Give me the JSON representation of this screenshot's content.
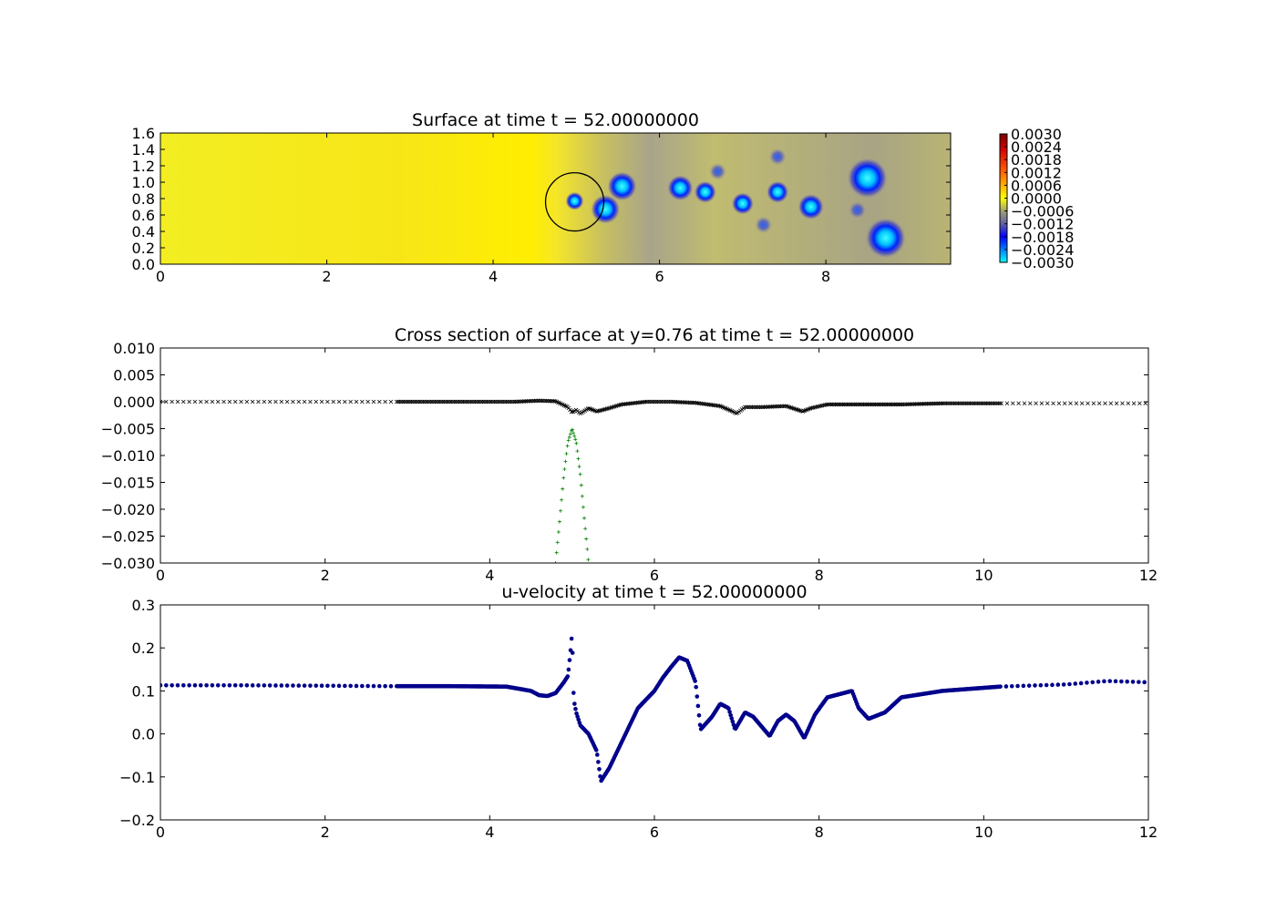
{
  "chart_data": [
    {
      "type": "heatmap",
      "title": "Surface at time t =    52.00000000",
      "xlim": [
        0,
        9.5
      ],
      "ylim": [
        0,
        1.6
      ],
      "xticks": [
        0,
        2,
        4,
        6,
        8
      ],
      "yticks": [
        "0.0",
        "0.2",
        "0.4",
        "0.6",
        "0.8",
        "1.0",
        "1.2",
        "1.4",
        "1.6"
      ],
      "colorbar": {
        "range": [
          -0.003,
          0.003
        ],
        "ticks": [
          "0.0030",
          "0.0024",
          "0.0018",
          "0.0012",
          "0.0006",
          "0.0000",
          "−0.0006",
          "−0.0012",
          "−0.0018",
          "−0.0024",
          "−0.0030"
        ],
        "colormap": "jet-like with yellow center"
      },
      "background_value": 0.0,
      "features": [
        {
          "x": 4.98,
          "y": 0.77,
          "r": 0.05,
          "value": -0.003
        },
        {
          "x": 5.55,
          "y": 0.95,
          "r": 0.08,
          "value": -0.003
        },
        {
          "x": 5.35,
          "y": 0.67,
          "r": 0.08,
          "value": -0.003
        },
        {
          "x": 6.25,
          "y": 0.93,
          "r": 0.07,
          "value": -0.0025
        },
        {
          "x": 6.55,
          "y": 0.88,
          "r": 0.06,
          "value": -0.0022
        },
        {
          "x": 6.7,
          "y": 1.13,
          "r": 0.04,
          "value": -0.0012
        },
        {
          "x": 7.0,
          "y": 0.74,
          "r": 0.06,
          "value": -0.0022
        },
        {
          "x": 7.25,
          "y": 0.48,
          "r": 0.04,
          "value": -0.0012
        },
        {
          "x": 7.42,
          "y": 0.88,
          "r": 0.06,
          "value": -0.002
        },
        {
          "x": 7.42,
          "y": 1.31,
          "r": 0.04,
          "value": -0.0012
        },
        {
          "x": 7.82,
          "y": 0.7,
          "r": 0.07,
          "value": -0.0022
        },
        {
          "x": 8.38,
          "y": 0.66,
          "r": 0.04,
          "value": -0.0015
        },
        {
          "x": 8.5,
          "y": 1.05,
          "r": 0.11,
          "value": -0.003
        },
        {
          "x": 8.72,
          "y": 0.32,
          "r": 0.11,
          "value": -0.003
        }
      ],
      "circle": {
        "x": 4.98,
        "y": 0.76,
        "radius_x": 0.35
      }
    },
    {
      "type": "scatter",
      "title": "Cross section of surface at y=0.76 at time t =    52.00000000",
      "xlim": [
        0,
        12
      ],
      "ylim": [
        -0.03,
        0.01
      ],
      "xticks": [
        0,
        2,
        4,
        6,
        8,
        10,
        12
      ],
      "yticks": [
        "0.010",
        "0.005",
        "0.000",
        "−0.005",
        "−0.010",
        "−0.015",
        "−0.020",
        "−0.025",
        "−0.030"
      ],
      "series": [
        {
          "marker": "x",
          "color": "#000000",
          "x": [
            0,
            2.8,
            3.5,
            4.3,
            4.6,
            4.8,
            4.95,
            5.0,
            5.05,
            5.1,
            5.2,
            5.3,
            5.45,
            5.6,
            5.9,
            6.2,
            6.5,
            6.8,
            6.95,
            7.0,
            7.1,
            7.3,
            7.6,
            7.8,
            7.9,
            8.1,
            8.5,
            9.0,
            9.5,
            10.2,
            11.0,
            12.0
          ],
          "y": [
            0.0,
            0.0,
            0.0,
            0.0,
            0.0002,
            0.0001,
            -0.001,
            -0.002,
            -0.0015,
            -0.0022,
            -0.0012,
            -0.0018,
            -0.0012,
            -0.0005,
            0.0,
            0.0,
            -0.0002,
            -0.0008,
            -0.0018,
            -0.0022,
            -0.001,
            -0.001,
            -0.0008,
            -0.0018,
            -0.0012,
            -0.0005,
            -0.0005,
            -0.0005,
            -0.0003,
            -0.0003,
            -0.0003,
            -0.0003
          ]
        },
        {
          "marker": "+",
          "color": "#007f00",
          "x": [
            4.8,
            4.85,
            4.9,
            4.95,
            5.0,
            5.05,
            5.1,
            5.15,
            5.2
          ],
          "y": [
            -0.03,
            -0.022,
            -0.0135,
            -0.0075,
            -0.005,
            -0.0075,
            -0.0135,
            -0.022,
            -0.03
          ]
        }
      ]
    },
    {
      "type": "scatter",
      "title": "u-velocity at time t =    52.00000000",
      "xlim": [
        0,
        12
      ],
      "ylim": [
        -0.2,
        0.3
      ],
      "xticks": [
        0,
        2,
        4,
        6,
        8,
        10,
        12
      ],
      "yticks": [
        "0.3",
        "0.2",
        "0.1",
        "0.0",
        "−0.1",
        "−0.2"
      ],
      "series": [
        {
          "marker": "o",
          "color": "#00008b",
          "x": [
            0,
            1,
            2,
            2.8,
            3.5,
            4.2,
            4.5,
            4.6,
            4.7,
            4.8,
            4.9,
            4.95,
            4.98,
            5.0,
            5.02,
            5.05,
            5.1,
            5.2,
            5.3,
            5.35,
            5.45,
            5.6,
            5.8,
            6.0,
            6.1,
            6.2,
            6.3,
            6.4,
            6.5,
            6.56,
            6.7,
            6.8,
            6.9,
            6.98,
            7.1,
            7.2,
            7.4,
            7.5,
            7.6,
            7.7,
            7.82,
            7.95,
            8.1,
            8.3,
            8.4,
            8.48,
            8.6,
            8.8,
            9.0,
            9.5,
            10.2,
            11.0,
            11.5,
            12.0
          ],
          "y": [
            0.113,
            0.113,
            0.112,
            0.111,
            0.111,
            0.11,
            0.1,
            0.09,
            0.088,
            0.095,
            0.12,
            0.135,
            0.19,
            0.235,
            0.08,
            0.05,
            0.02,
            0.0,
            -0.04,
            -0.11,
            -0.08,
            -0.02,
            0.06,
            0.1,
            0.13,
            0.155,
            0.178,
            0.17,
            0.12,
            0.01,
            0.04,
            0.07,
            0.06,
            0.01,
            0.05,
            0.04,
            -0.005,
            0.03,
            0.045,
            0.03,
            -0.01,
            0.045,
            0.085,
            0.095,
            0.1,
            0.06,
            0.035,
            0.05,
            0.085,
            0.1,
            0.11,
            0.115,
            0.123,
            0.12
          ]
        }
      ]
    }
  ]
}
